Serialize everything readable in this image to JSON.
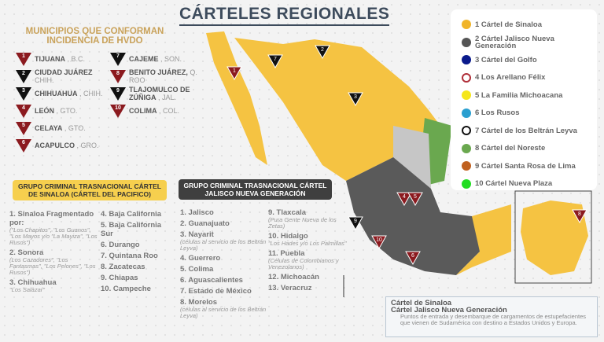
{
  "title": "CÁRTELES REGIONALES",
  "municipios": {
    "title": "MUNICIPIOS QUE CONFORMAN INCIDENCIA DE HVDO",
    "left": [
      {
        "n": "1",
        "city": "TIJUANA",
        "state": ", B.C.",
        "c": "red"
      },
      {
        "n": "2",
        "city": "CIUDAD JUÁREZ",
        "state": "CHIH.",
        "c": "black"
      },
      {
        "n": "3",
        "city": "CHIHUAHUA",
        "state": ", CHIH.",
        "c": "black"
      },
      {
        "n": "4",
        "city": "LEÓN",
        "state": ", GTO.",
        "c": "red"
      },
      {
        "n": "5",
        "city": "CELAYA",
        "state": ", GTO.",
        "c": "red"
      },
      {
        "n": "6",
        "city": "ACAPULCO",
        "state": ", GRO.",
        "c": "red"
      }
    ],
    "right": [
      {
        "n": "7",
        "city": "CAJEME",
        "state": ", SON.",
        "c": "black"
      },
      {
        "n": "8",
        "city": "BENITO JUÁREZ,",
        "state": "Q. ROO",
        "c": "red"
      },
      {
        "n": "9",
        "city": "TLAJOMULCO DE ZÚÑIGA",
        "state": ", JAL.",
        "c": "black"
      },
      {
        "n": "10",
        "city": "COLIMA",
        "state": ", COL.",
        "c": "red"
      }
    ]
  },
  "sinaloa_box": {
    "title": "GRUPO CRIMINAL TRASNACIONAL CÁRTEL DE SINALOA (CÁRTEL DEL PACIFICO)",
    "col1": [
      {
        "t": "1. Sinaloa Fragmentado por:",
        "s": "(\"Los Chapitos\", \"Los Guanos\", \"Los Mayos y/o \"La Mayiza\", \"Los Rusos\")"
      },
      {
        "t": "2. Sonora",
        "s": "(Los Cazadores\", \"Los Fantasmas\", \"Los Pelones\", \"Los Rusos\")"
      },
      {
        "t": "3. Chihuahua",
        "s": "\"Los Salazar\""
      }
    ],
    "col2": [
      {
        "t": "4. Baja California"
      },
      {
        "t": "5. Baja California Sur"
      },
      {
        "t": "6. Durango"
      },
      {
        "t": "7. Quintana Roo"
      },
      {
        "t": "8. Zacatecas"
      },
      {
        "t": "9. Chiapas"
      },
      {
        "t": "10. Campeche"
      }
    ]
  },
  "cjng_box": {
    "title": "GRUPO CRIMINAL TRASNACIONAL CÁRTEL JALISCO NUEVA GENERACIÓN",
    "col1": [
      {
        "t": "1. Jalisco"
      },
      {
        "t": "2. Guanajuato"
      },
      {
        "t": "3. Nayarit",
        "s": "(células al servicio de los Beltrán Leyva)"
      },
      {
        "t": "4. Guerrero"
      },
      {
        "t": "5. Colima"
      },
      {
        "t": "6. Aguascalientes"
      },
      {
        "t": "7. Estado de México"
      },
      {
        "t": "8. Morelos",
        "s": "(células al servicio de los Beltrán Leyva)"
      }
    ],
    "col2": [
      {
        "t": "9. Tlaxcala",
        "s": "(Pura Gente Nueva de los Zetas)"
      },
      {
        "t": "10. Hidalgo",
        "s": "\"Los Hades y/o Los Palmillas\""
      },
      {
        "t": "11. Puebla",
        "s": "(Células de Colombianos y Venezolanos)"
      },
      {
        "t": "12. Michoacán"
      },
      {
        "t": "13. Veracruz"
      }
    ]
  },
  "legend": [
    {
      "label": "1 Cártel de Sinaloa",
      "color": "#f0b429"
    },
    {
      "label": "2 Cártel Jalisco Nueva Generación",
      "color": "#555555"
    },
    {
      "label": "3 Cártel del Golfo",
      "color": "#0a1a8c"
    },
    {
      "label": "4 Los Arellano Félix",
      "color": "ring-#b0303a"
    },
    {
      "label": "5 La Familia Michoacana",
      "color": "#f5e61a"
    },
    {
      "label": "6 Los Rusos",
      "color": "#2a9fd0"
    },
    {
      "label": "7 Cártel de los Beltrán Leyva",
      "color": "ring-#111111"
    },
    {
      "label": "8 Cártel del Noreste",
      "color": "#6aa84f"
    },
    {
      "label": "9 Cártel Santa Rosa de Lima",
      "color": "#c0611f"
    },
    {
      "label": "10 Cártel Nueva Plaza",
      "color": "#22dd22"
    }
  ],
  "note": {
    "items": [
      "Cártel de Sinaloa",
      "Cártel Jalisco Nueva Generación"
    ],
    "text": "Puntos de entrada y desembarque de cargamentos de estupefacientes que vienen de Sudamérica con destino a Estados Unidos y Europa."
  },
  "map_markers": [
    "1",
    "7",
    "2",
    "3",
    "4",
    "5",
    "9",
    "10",
    "6",
    "8"
  ]
}
